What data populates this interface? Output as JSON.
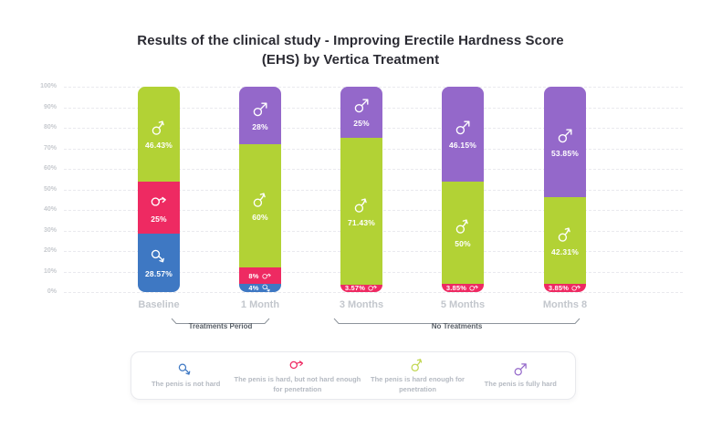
{
  "title": {
    "line1": "Results of the clinical study - Improving Erectile Hardness Score",
    "line2": "(EHS) by Vertica Treatment"
  },
  "chart_data": {
    "type": "bar",
    "stacked": true,
    "title": "Results of the clinical study - Improving Erectile Hardness Score (EHS) by Vertica Treatment",
    "categories": [
      "Baseline",
      "1 Month",
      "3 Months",
      "5 Months",
      "Months 8"
    ],
    "series": [
      {
        "name": "The penis is not hard",
        "icon": "male-not-hard",
        "color": "#3e78c3",
        "values": [
          28.57,
          4,
          0,
          0,
          0
        ],
        "labels": [
          "28.57%",
          "4%",
          "",
          "",
          ""
        ]
      },
      {
        "name": "The penis is hard, but not hard enough for penetration",
        "icon": "male-hard-not-enough",
        "color": "#ee2a62",
        "values": [
          25,
          8,
          3.57,
          3.85,
          3.85
        ],
        "labels": [
          "25%",
          "8%",
          "3.57%",
          "3.85%",
          "3.85%"
        ]
      },
      {
        "name": "The penis is hard enough for penetration",
        "icon": "male-hard-enough",
        "color": "#b2d235",
        "values": [
          46.43,
          60,
          71.43,
          50,
          42.31
        ],
        "labels": [
          "46.43%",
          "60%",
          "71.43%",
          "50%",
          "42.31%"
        ]
      },
      {
        "name": "The penis is fully hard",
        "icon": "male-fully-hard",
        "color": "#9468ca",
        "values": [
          0,
          28,
          25,
          46.15,
          53.85
        ],
        "labels": [
          "",
          "28%",
          "25%",
          "46.15%",
          "53.85%"
        ]
      }
    ],
    "ylim": [
      0,
      100
    ],
    "yticks": [
      "100%",
      "90%",
      "80%",
      "70%",
      "60%",
      "50%",
      "40%",
      "30%",
      "20%",
      "10%",
      "0%"
    ],
    "grid": "horizontal-dashed",
    "legend_position": "bottom",
    "annotations": [
      {
        "label": "Treatments Period",
        "from": "Baseline",
        "to": "1 Month"
      },
      {
        "label": "No Treatments",
        "from": "3 Months",
        "to": "Months 8"
      }
    ]
  },
  "legend": {
    "items": [
      {
        "icon": "male-not-hard",
        "color": "#3e78c3",
        "label": "The penis is not hard"
      },
      {
        "icon": "male-hard-not-enough",
        "color": "#ee2a62",
        "label": "The penis is hard, but not hard enough for penetration"
      },
      {
        "icon": "male-hard-enough",
        "color": "#c0d64e",
        "label": "The penis is hard enough for penetration"
      },
      {
        "icon": "male-fully-hard",
        "color": "#9468ca",
        "label": "The penis is fully hard"
      }
    ]
  }
}
